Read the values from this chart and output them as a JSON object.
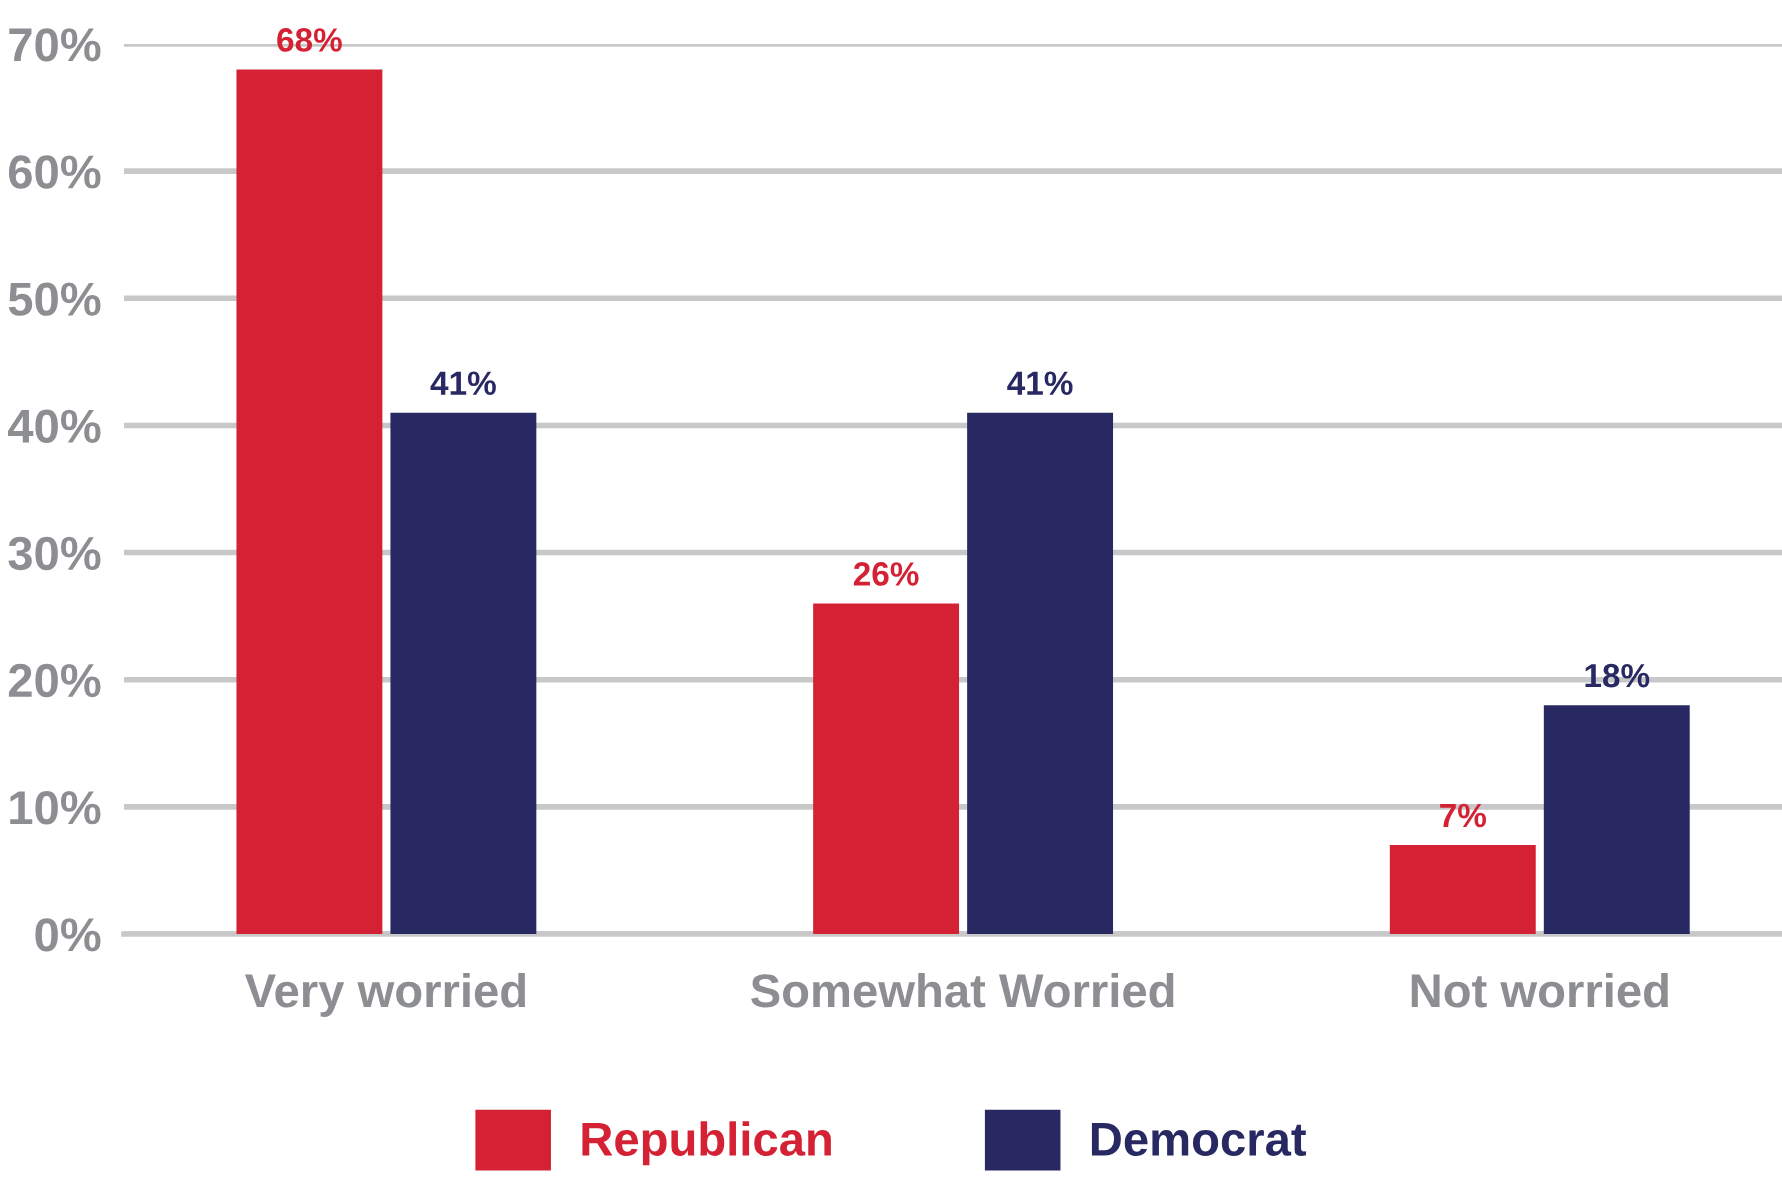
{
  "chart_data": {
    "type": "bar",
    "categories": [
      "Very worried",
      "Somewhat Worried",
      "Not worried"
    ],
    "series": [
      {
        "name": "Republican",
        "color": "#d42234",
        "values": [
          68,
          26,
          7
        ],
        "value_labels": [
          "68%",
          "26%",
          "7%"
        ]
      },
      {
        "name": "Democrat",
        "color": "#282862",
        "values": [
          41,
          41,
          18
        ],
        "value_labels": [
          "41%",
          "41%",
          "18%"
        ]
      }
    ],
    "ylim": [
      0,
      70
    ],
    "yticks": [
      {
        "value": 0,
        "label": "0%"
      },
      {
        "value": 10,
        "label": "10%"
      },
      {
        "value": 20,
        "label": "20%"
      },
      {
        "value": 30,
        "label": "30%"
      },
      {
        "value": 40,
        "label": "40%"
      },
      {
        "value": 50,
        "label": "50%"
      },
      {
        "value": 60,
        "label": "60%"
      },
      {
        "value": 70,
        "label": "70%"
      }
    ],
    "grid": "y",
    "legend": "bottom"
  }
}
